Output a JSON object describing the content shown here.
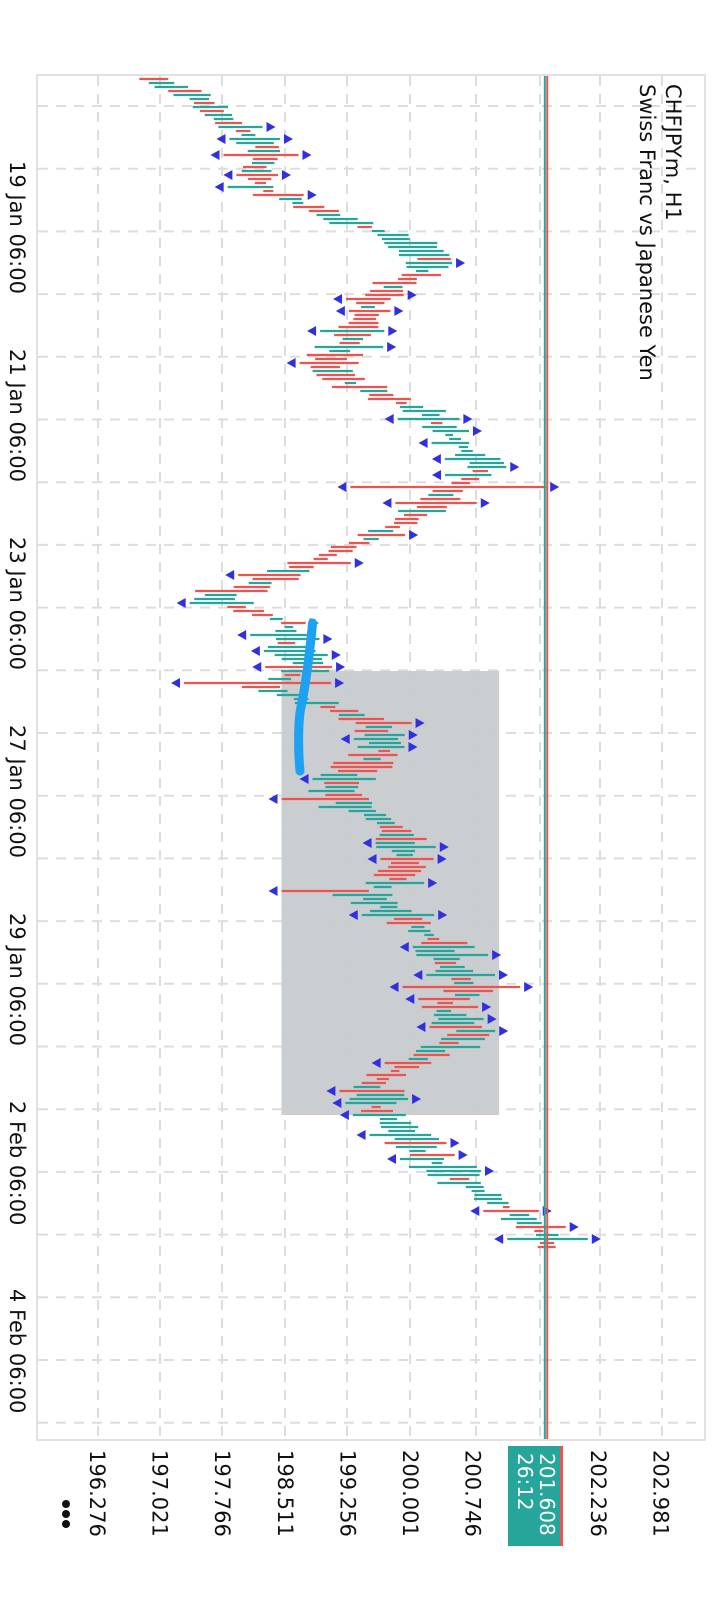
{
  "header": {
    "symbol_line": "CHFJPYm, H1",
    "description": "Swiss Franc vs Japanese Yen"
  },
  "colors": {
    "bull": "#26a69a",
    "bear": "#ef5350",
    "fractal": "#3030e0",
    "grid": "#dddddd",
    "highlight": "#c7cbcf",
    "drawing": "#1da1f2",
    "price_label_bg": "#26a69a"
  },
  "current_price": {
    "price": "201.608",
    "countdown": "26:12",
    "value": 201.608
  },
  "menu": {
    "icon": "more-vertical-icon"
  },
  "chart_data": {
    "type": "candlestick",
    "title": "CHFJPYm, H1",
    "subtitle": "Swiss Franc vs Japanese Yen",
    "orientation": "rotated-90-clockwise",
    "price_ticks": [
      "196.276",
      "197.021",
      "197.766",
      "198.511",
      "199.256",
      "200.001",
      "200.746",
      "202.236",
      "202.981"
    ],
    "price_tick_values": [
      196.276,
      197.021,
      197.766,
      198.511,
      199.256,
      200.001,
      200.746,
      202.236,
      202.981
    ],
    "price_range": [
      195.55,
      203.48
    ],
    "time_labels": [
      "19 Jan 06:00",
      "21 Jan 06:00",
      "23 Jan 06:00",
      "27 Jan 06:00",
      "29 Jan 06:00",
      "2 Feb 06:00",
      "4 Feb 06:00"
    ],
    "time_label_bar_index": [
      38,
      85,
      132,
      179,
      226,
      273,
      320
    ],
    "bar_count_visible": 340,
    "grid": true,
    "price_path": [
      [
        0,
        196.99
      ],
      [
        7,
        197.6
      ],
      [
        17,
        198.25
      ],
      [
        27,
        198.18
      ],
      [
        32,
        198.78
      ],
      [
        39,
        199.77
      ],
      [
        44,
        200.2
      ],
      [
        48,
        200.13
      ],
      [
        56,
        199.5
      ],
      [
        63,
        199.4
      ],
      [
        72,
        199.02
      ],
      [
        76,
        199.28
      ],
      [
        83,
        200.13
      ],
      [
        97,
        200.9
      ],
      [
        102,
        200.55
      ],
      [
        110,
        200.0
      ],
      [
        117,
        199.28
      ],
      [
        126,
        198.2
      ],
      [
        130,
        197.6
      ],
      [
        136,
        198.55
      ],
      [
        141,
        198.55
      ],
      [
        147,
        198.8
      ],
      [
        152,
        198.2
      ],
      [
        160,
        199.5
      ],
      [
        167,
        199.75
      ],
      [
        175,
        199.13
      ],
      [
        181,
        199.25
      ],
      [
        188,
        199.87
      ],
      [
        198,
        199.98
      ],
      [
        204,
        199.5
      ],
      [
        214,
        200.22
      ],
      [
        228,
        200.7
      ],
      [
        232,
        200.35
      ],
      [
        238,
        200.7
      ],
      [
        246,
        199.98
      ],
      [
        252,
        199.5
      ],
      [
        258,
        199.6
      ],
      [
        268,
        200.1
      ],
      [
        278,
        200.82
      ],
      [
        284,
        201.3
      ],
      [
        289,
        201.58
      ],
      [
        292,
        201.62
      ]
    ],
    "large_candles": [
      {
        "bar": 102,
        "low": 199.28,
        "high": 201.61,
        "direction": "bear"
      },
      {
        "bar": 151,
        "low": 197.3,
        "high": 199.05,
        "direction": "bear"
      },
      {
        "bar": 180,
        "low": 198.46,
        "high": 199.5,
        "direction": "bear"
      },
      {
        "bar": 203,
        "low": 198.46,
        "high": 199.5,
        "direction": "bear"
      },
      {
        "bar": 227,
        "low": 199.9,
        "high": 201.3,
        "direction": "bear"
      }
    ],
    "highlight_box": {
      "price_from": 198.46,
      "price_to": 201.05,
      "bar_from": 148,
      "bar_to": 259
    },
    "drawing_stroke": {
      "price_from": 198.83,
      "price_to": 198.68,
      "bar_from": 136,
      "bar_to": 173
    },
    "last_price": 201.608
  }
}
